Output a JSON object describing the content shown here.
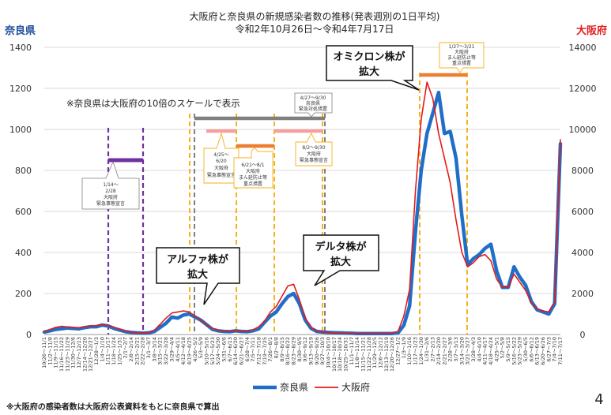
{
  "chart_data": {
    "type": "line",
    "title": "大阪府と奈良県の新規感染者数の推移(発表週別の1日平均)",
    "subtitle": "令和2年10月26日〜令和4年7月17日",
    "ylabel_left": "奈良県",
    "ylabel_right": "大阪府",
    "ylim_left": [
      0,
      1400
    ],
    "ylim_right": [
      0,
      14000
    ],
    "yticks_left": [
      0,
      200,
      400,
      600,
      800,
      1000,
      1200,
      1400
    ],
    "yticks_right": [
      0,
      2000,
      4000,
      6000,
      8000,
      10000,
      12000,
      14000
    ],
    "grid": true,
    "legend_position": "bottom",
    "colors": {
      "nara": "#1f6fc9",
      "osaka": "#e31a1c",
      "purple": "#7030a0",
      "gold": "#f5b21b",
      "pink": "#f4a0a0",
      "orange": "#ed7d31",
      "gray": "#7f7f7f"
    },
    "categories": [
      "10/26～11/1",
      "11/2～11/8",
      "11/9～11/15",
      "11/16～11/22",
      "11/23～11/29",
      "11/30～12/6",
      "12/7～12/13",
      "12/14～12/20",
      "12/21～12/27",
      "12/28～1/3",
      "1/4～1/10",
      "1/11～1/17",
      "1/18～1/24",
      "1/25～1/31",
      "2/1～2/7",
      "2/8～2/14",
      "2/15～2/21",
      "2/22～2/28",
      "3/1～3/7",
      "3/8～3/14",
      "3/15～3/21",
      "3/22～3/28",
      "3/29～4/4",
      "4/5～4/11",
      "4/12～4/18",
      "4/19～4/25",
      "4/26～5/2",
      "5/3～5/9",
      "5/10～5/16",
      "5/17～5/23",
      "5/24～5/30",
      "5/31～6/6",
      "6/7～6/13",
      "6/14～6/20",
      "6/21～6/27",
      "6/28～7/4",
      "7/5～7/11",
      "7/12～7/18",
      "7/19～7/25",
      "7/26～8/1",
      "8/2～8/8",
      "8/9～8/15",
      "8/16～8/22",
      "8/23～8/29",
      "8/30～9/5",
      "9/6～9/12",
      "9/13～9/19",
      "9/20～9/26",
      "9/27～10/3",
      "10/4～10/10",
      "10/11～10/17",
      "10/18～10/24",
      "10/25～10/31",
      "11/1～11/7",
      "11/8～11/14",
      "11/15～11/21",
      "11/22～11/28",
      "11/29～12/5",
      "12/6～12/12",
      "12/13～12/19",
      "12/20～12/26",
      "12/27～1/2",
      "1/3～1/9",
      "1/10～1/16",
      "1/17～1/23",
      "1/24～1/30",
      "1/31～2/6",
      "2/7～2/13",
      "2/14～2/20",
      "2/21～2/27",
      "2/28～3/6",
      "3/7～3/13",
      "3/14～3/20",
      "3/21～3/27",
      "3/28～4/3",
      "4/4～4/10",
      "4/11～4/17",
      "4/18～4/24",
      "4/25～5/1",
      "5/2～5/8",
      "5/9～5/15",
      "5/16～5/22",
      "5/23～5/29",
      "5/30～6/5",
      "6/6～6/12",
      "6/13～6/19",
      "6/20～6/26",
      "6/27～7/3",
      "7/4～7/10",
      "7/11～7/17"
    ],
    "series": [
      {
        "name": "奈良県",
        "axis": "left",
        "values": [
          12,
          18,
          25,
          28,
          32,
          30,
          28,
          34,
          38,
          38,
          46,
          42,
          30,
          22,
          14,
          10,
          8,
          7,
          8,
          15,
          35,
          55,
          85,
          80,
          95,
          100,
          85,
          70,
          48,
          25,
          18,
          15,
          14,
          18,
          15,
          14,
          18,
          28,
          60,
          90,
          110,
          150,
          185,
          200,
          150,
          70,
          30,
          15,
          12,
          10,
          9,
          8,
          7,
          6,
          5,
          5,
          5,
          5,
          5,
          5,
          5,
          8,
          45,
          140,
          500,
          800,
          980,
          1080,
          1180,
          980,
          990,
          860,
          580,
          340,
          370,
          390,
          420,
          440,
          310,
          230,
          230,
          330,
          280,
          240,
          160,
          120,
          110,
          100,
          150,
          930
        ]
      },
      {
        "name": "大阪府",
        "axis": "right",
        "values": [
          150,
          250,
          350,
          400,
          370,
          350,
          320,
          380,
          420,
          430,
          480,
          440,
          360,
          260,
          170,
          110,
          80,
          70,
          90,
          220,
          500,
          800,
          1050,
          1100,
          1150,
          1100,
          900,
          700,
          460,
          300,
          210,
          170,
          150,
          170,
          160,
          150,
          230,
          380,
          650,
          1100,
          1370,
          1870,
          2370,
          2450,
          1700,
          800,
          340,
          170,
          120,
          100,
          80,
          70,
          60,
          50,
          50,
          50,
          50,
          50,
          50,
          50,
          60,
          150,
          900,
          2200,
          7000,
          10500,
          12300,
          11500,
          9800,
          8600,
          7400,
          5600,
          4000,
          3300,
          3500,
          3800,
          3900,
          3600,
          2700,
          2300,
          2300,
          2950,
          2550,
          2150,
          1550,
          1250,
          1150,
          1100,
          1600,
          9500
        ]
      }
    ],
    "annotations": [
      "※奈良県は大阪府の10倍のスケールで表示",
      "オミクロン株が拡大",
      "アルファ株が拡大",
      "デルタ株が拡大",
      "1/14～2/28 大阪府 緊急事態宣言",
      "4/25～6/20 大阪府 緊急事態宣言",
      "6/21～8/1 大阪府 まん延防止等 重点措置",
      "8/2～9/30 大阪府 緊急事態宣言",
      "4/27～9/30 奈良県 緊急対処措置",
      "1/27～3/21 大阪府 まん延防止等 重点措置"
    ]
  },
  "labels": {
    "title": "大阪府と奈良県の新規感染者数の推移(発表週別の1日平均)",
    "subtitle": "令和2年10月26日〜令和4年7月17日",
    "left_axis": "奈良県",
    "right_axis": "大阪府",
    "scale_note": "※奈良県は大阪府の10倍のスケールで表示",
    "footnote": "※大阪府の感染者数は大阪府公表資料をもとに奈良県で算出",
    "page_number": "4",
    "legend_nara": "奈良県",
    "legend_osaka": "大阪府",
    "callout_omicron_1": "オミクロン株が",
    "callout_omicron_2": "拡大",
    "callout_alpha_1": "アルファ株が",
    "callout_alpha_2": "拡大",
    "callout_delta_1": "デルタ株が",
    "callout_delta_2": "拡大",
    "box1_1": "1/14～",
    "box1_2": "2/28",
    "box1_3": "大阪府",
    "box1_4": "緊急事態宣言",
    "box2_1": "4/25～",
    "box2_2": "6/20",
    "box2_3": "大阪府",
    "box2_4": "緊急事態宣言",
    "box3_1": "6/21～8/1",
    "box3_2": "大阪府",
    "box3_3": "まん延防止等",
    "box3_4": "重点措置",
    "box4_1": "8/2～9/30",
    "box4_2": "大阪府",
    "box4_3": "緊急事態宣言",
    "box5_1": "4/27～9/30",
    "box5_2": "奈良県",
    "box5_3": "緊急対処措置",
    "box6_1": "1/27～3/21",
    "box6_2": "大阪府",
    "box6_3": "まん延防止等",
    "box6_4": "重点措置"
  }
}
